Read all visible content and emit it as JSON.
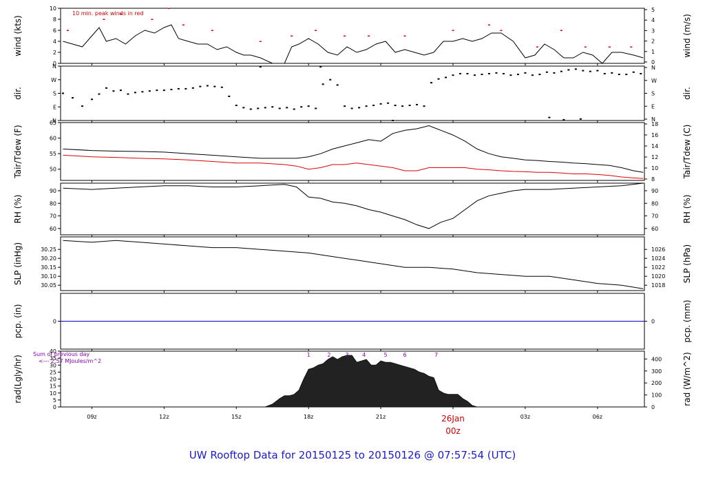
{
  "title": "UW Rooftop Data for 20150125  to  20150126 @ 07:57:54  (UTC)",
  "x_axis": {
    "range_hours": [
      7.7,
      31.95
    ],
    "ticks": [
      {
        "h": 9,
        "label": "09z"
      },
      {
        "h": 12,
        "label": "12z"
      },
      {
        "h": 15,
        "label": "15z"
      },
      {
        "h": 18,
        "label": "18z"
      },
      {
        "h": 21,
        "label": "21z"
      },
      {
        "h": 27,
        "label": "03z"
      },
      {
        "h": 30,
        "label": "06z"
      }
    ],
    "day_label": "26Jan",
    "day_sublabel": "00z",
    "day_hour": 24
  },
  "colors": {
    "axis": "#000000",
    "peak": "#d00000",
    "dew": "#e00000",
    "precip": "#0000cc",
    "purple": "#8800bb",
    "title": "#1a1acc"
  },
  "chart_data": [
    {
      "id": "wind",
      "type": "line",
      "ylabel_left": "wind (kts)",
      "ylabel_right": "wind (m/s)",
      "ylim": [
        0,
        10
      ],
      "left_ticks": [
        "0",
        "2",
        "4",
        "6",
        "8",
        "10"
      ],
      "right_ticks": [
        "0",
        "1",
        "2",
        "3",
        "4",
        "5"
      ],
      "annotation": "10 min. peak winds in red",
      "series": [
        {
          "role": "mean",
          "x": [
            7.8,
            8.2,
            8.6,
            9.0,
            9.3,
            9.6,
            10.0,
            10.4,
            10.8,
            11.2,
            11.6,
            12.0,
            12.3,
            12.6,
            13.0,
            13.4,
            13.8,
            14.2,
            14.6,
            15.0,
            15.3,
            15.6,
            16.0,
            16.5,
            17.0,
            17.3,
            17.6,
            18.0,
            18.4,
            18.8,
            19.2,
            19.6,
            20.0,
            20.4,
            20.8,
            21.2,
            21.6,
            22.0,
            22.4,
            22.8,
            23.2,
            23.6,
            24.0,
            24.4,
            24.8,
            25.2,
            25.6,
            26.0,
            26.5,
            27.0,
            27.4,
            27.8,
            28.2,
            28.6,
            29.0,
            29.4,
            29.8,
            30.2,
            30.6,
            31.0,
            31.5,
            31.9
          ],
          "y": [
            4.0,
            3.5,
            3.0,
            5.0,
            6.5,
            4.0,
            4.5,
            3.5,
            5.0,
            6.0,
            5.5,
            6.5,
            7.0,
            4.5,
            4.0,
            3.5,
            3.5,
            2.5,
            3.0,
            2.0,
            1.5,
            1.5,
            1.0,
            0.0,
            0.0,
            3.0,
            3.5,
            4.5,
            3.5,
            2.0,
            1.5,
            3.0,
            2.0,
            2.5,
            3.5,
            4.0,
            2.0,
            2.5,
            2.0,
            1.5,
            2.0,
            4.0,
            4.0,
            4.5,
            4.0,
            4.5,
            5.5,
            5.5,
            4.0,
            1.0,
            1.5,
            3.5,
            2.5,
            1.0,
            1.0,
            2.0,
            1.5,
            0.0,
            2.0,
            2.0,
            1.5,
            1.0
          ]
        },
        {
          "role": "peak",
          "x": [
            8.0,
            9.5,
            10.2,
            11.5,
            12.2,
            12.8,
            14.0,
            16.0,
            17.3,
            18.3,
            19.5,
            20.5,
            22.0,
            24.0,
            25.5,
            26.0,
            27.5,
            28.5,
            29.5,
            30.5,
            31.4
          ],
          "y": [
            6,
            8,
            9,
            8,
            10,
            7,
            6,
            4,
            5,
            6,
            5,
            5,
            5,
            6,
            7,
            6,
            3,
            6,
            3,
            3,
            3
          ]
        }
      ]
    },
    {
      "id": "dir",
      "type": "scatter",
      "ylabel_left": "dir.",
      "ylabel_right": "dir.",
      "ylim": [
        0,
        360
      ],
      "left_ticks": [
        "N",
        "E",
        "S",
        "W",
        "N"
      ],
      "right_ticks": [
        "N",
        "E",
        "S",
        "W",
        "N"
      ],
      "x": [
        7.8,
        8.2,
        8.6,
        9.0,
        9.3,
        9.6,
        9.9,
        10.2,
        10.5,
        10.8,
        11.1,
        11.4,
        11.7,
        12.0,
        12.3,
        12.6,
        12.9,
        13.2,
        13.5,
        13.8,
        14.1,
        14.4,
        14.7,
        15.0,
        15.3,
        15.6,
        15.9,
        16.2,
        16.5,
        16.8,
        17.1,
        17.4,
        17.7,
        18.0,
        18.3,
        18.6,
        18.9,
        19.2,
        19.5,
        19.8,
        20.1,
        20.4,
        20.7,
        21.0,
        21.3,
        21.6,
        21.9,
        22.2,
        22.5,
        22.8,
        23.1,
        23.4,
        23.7,
        24.0,
        24.3,
        24.6,
        24.9,
        25.2,
        25.5,
        25.8,
        26.1,
        26.4,
        26.7,
        27.0,
        27.3,
        27.6,
        27.9,
        28.2,
        28.5,
        28.8,
        29.1,
        29.4,
        29.7,
        30.0,
        30.3,
        30.6,
        30.9,
        31.2,
        31.5,
        31.8,
        16.0,
        18.5,
        21.5,
        28.0,
        28.6,
        29.3
      ],
      "y": [
        180,
        150,
        95,
        140,
        175,
        215,
        195,
        200,
        175,
        185,
        190,
        195,
        200,
        200,
        205,
        210,
        210,
        215,
        225,
        230,
        225,
        220,
        160,
        100,
        85,
        75,
        80,
        85,
        90,
        80,
        85,
        75,
        90,
        95,
        80,
        240,
        270,
        235,
        95,
        80,
        85,
        95,
        100,
        110,
        115,
        100,
        95,
        100,
        105,
        95,
        250,
        275,
        285,
        300,
        310,
        310,
        300,
        305,
        310,
        315,
        310,
        300,
        305,
        315,
        300,
        305,
        320,
        315,
        325,
        335,
        340,
        330,
        325,
        330,
        310,
        315,
        305,
        305,
        320,
        310,
        355,
        355,
        0,
        20,
        5,
        10
      ]
    },
    {
      "id": "temp",
      "type": "line",
      "ylabel_left": "Tair/Tdew (F)",
      "ylabel_right": "Tair/Tdew (C)",
      "ylim": [
        46.4,
        65
      ],
      "left_ticks": [
        "50",
        "55",
        "60",
        "65"
      ],
      "left_tick_values": [
        50,
        55,
        60,
        65
      ],
      "right_ticks": [
        "8",
        "10",
        "12",
        "14",
        "16",
        "18"
      ],
      "series": [
        {
          "name": "Tair",
          "x": [
            7.8,
            9,
            10,
            11,
            12,
            13,
            14,
            15,
            16,
            17,
            17.5,
            18,
            18.5,
            19,
            19.5,
            20,
            20.5,
            21,
            21.5,
            22,
            22.5,
            23,
            23.5,
            24,
            24.5,
            25,
            25.5,
            26,
            26.5,
            27,
            27.5,
            28,
            28.5,
            29,
            29.5,
            30,
            30.5,
            31,
            31.5,
            31.9
          ],
          "y": [
            56.5,
            56.0,
            55.8,
            55.7,
            55.5,
            55.0,
            54.5,
            54.0,
            53.5,
            53.5,
            53.5,
            54.0,
            55.0,
            56.5,
            57.5,
            58.5,
            59.5,
            59.0,
            61.5,
            62.5,
            63.0,
            64.0,
            62.5,
            61.0,
            59.0,
            56.5,
            55.0,
            54.0,
            53.5,
            53.0,
            52.8,
            52.5,
            52.3,
            52.0,
            51.8,
            51.5,
            51.2,
            50.5,
            49.5,
            49.0
          ]
        },
        {
          "name": "Tdew",
          "x": [
            7.8,
            9,
            10,
            11,
            12,
            13,
            14,
            15,
            16,
            17,
            17.5,
            18,
            18.5,
            19,
            19.5,
            20,
            20.5,
            21,
            21.5,
            22,
            22.5,
            23,
            23.5,
            24,
            24.5,
            25,
            25.5,
            26,
            26.5,
            27,
            27.5,
            28,
            28.5,
            29,
            29.5,
            30,
            30.5,
            31,
            31.5,
            31.9
          ],
          "y": [
            54.5,
            54.0,
            53.8,
            53.5,
            53.3,
            53.0,
            52.5,
            52.0,
            52.0,
            51.5,
            51.0,
            50.0,
            50.5,
            51.5,
            51.5,
            52.0,
            51.5,
            51.0,
            50.5,
            49.5,
            49.5,
            50.5,
            50.5,
            50.5,
            50.5,
            50.0,
            49.8,
            49.5,
            49.3,
            49.2,
            49.0,
            49.0,
            48.8,
            48.5,
            48.5,
            48.3,
            48.0,
            47.5,
            47.2,
            47.0
          ]
        }
      ]
    },
    {
      "id": "rh",
      "type": "line",
      "ylabel_left": "RH (%)",
      "ylabel_right": "RH (%)",
      "ylim": [
        55,
        96
      ],
      "left_ticks": [
        "60",
        "70",
        "80",
        "90"
      ],
      "left_tick_values": [
        60,
        70,
        80,
        90
      ],
      "right_ticks": [
        "60",
        "70",
        "80",
        "90"
      ],
      "series": [
        {
          "x": [
            7.8,
            9,
            10,
            11,
            12,
            13,
            14,
            15,
            16,
            17,
            17.5,
            18,
            18.5,
            19,
            19.5,
            20,
            20.5,
            21,
            21.5,
            22,
            22.5,
            23,
            23.5,
            24,
            24.5,
            25,
            25.5,
            26,
            26.5,
            27,
            28,
            29,
            30,
            31,
            31.9
          ],
          "y": [
            92,
            91,
            92,
            93,
            94,
            94,
            93,
            93,
            94,
            95,
            93,
            85,
            84,
            81,
            80,
            78,
            75,
            73,
            70,
            67,
            63,
            60,
            65,
            68,
            75,
            82,
            86,
            88,
            90,
            91,
            91,
            92,
            93,
            94,
            96
          ]
        }
      ]
    },
    {
      "id": "slp",
      "type": "line",
      "ylabel_left": "SLP (inHg)",
      "ylabel_right": "SLP (hPa)",
      "ylim": [
        30.02,
        30.32
      ],
      "left_ticks": [
        "30.05",
        "30.10",
        "30.15",
        "30.20",
        "30.25"
      ],
      "left_tick_values": [
        30.05,
        30.1,
        30.15,
        30.2,
        30.25
      ],
      "right_ticks": [
        "1018",
        "1020",
        "1022",
        "1024",
        "1026"
      ],
      "series": [
        {
          "x": [
            7.8,
            9,
            10,
            11,
            12,
            13,
            14,
            15,
            16,
            17,
            18,
            19,
            20,
            21,
            22,
            23,
            24,
            25,
            26,
            27,
            28,
            29,
            30,
            31,
            31.9
          ],
          "y": [
            30.3,
            30.29,
            30.3,
            30.29,
            30.28,
            30.27,
            30.26,
            30.26,
            30.25,
            30.24,
            30.23,
            30.21,
            30.19,
            30.17,
            30.15,
            30.15,
            30.14,
            30.12,
            30.11,
            30.1,
            30.1,
            30.08,
            30.06,
            30.05,
            30.03
          ]
        }
      ]
    },
    {
      "id": "precip",
      "type": "line",
      "ylabel_left": "pcp. (in)",
      "ylabel_right": "pcp. (mm)",
      "ylim": [
        -1,
        1
      ],
      "left_ticks": [
        "0"
      ],
      "left_tick_values": [
        0
      ],
      "right_ticks": [
        "0"
      ],
      "series": [
        {
          "x": [
            7.7,
            31.95
          ],
          "y": [
            0,
            0
          ]
        }
      ]
    },
    {
      "id": "rad",
      "type": "area",
      "ylabel_left": "rad(Lgly/hr)",
      "ylabel_right": "rad (W/m^2)",
      "ylim": [
        0,
        40
      ],
      "left_ticks": [
        "0",
        "5",
        "10",
        "15",
        "20",
        "25",
        "30",
        "35",
        "40"
      ],
      "left_tick_values": [
        0,
        5,
        10,
        15,
        20,
        25,
        30,
        35,
        40
      ],
      "right_ticks": [
        "0",
        "100",
        "200",
        "300",
        "400"
      ],
      "right_tick_values_left_units": [
        0,
        8.6,
        17.2,
        25.8,
        34.4
      ],
      "annotation_line1": "Sum of previous day",
      "annotation_line2": "<--- 2.57 MJoules/m^2",
      "hour_markers": [
        {
          "h": 18.0,
          "label": "1"
        },
        {
          "h": 18.85,
          "label": "2"
        },
        {
          "h": 19.6,
          "label": "3"
        },
        {
          "h": 20.3,
          "label": "4"
        },
        {
          "h": 21.2,
          "label": "5"
        },
        {
          "h": 22.0,
          "label": "6"
        },
        {
          "h": 23.3,
          "label": "7"
        }
      ],
      "x": [
        16.2,
        16.5,
        16.8,
        17.0,
        17.2,
        17.4,
        17.6,
        17.8,
        18.0,
        18.2,
        18.4,
        18.6,
        18.8,
        19.0,
        19.2,
        19.4,
        19.6,
        19.8,
        20.0,
        20.2,
        20.4,
        20.6,
        20.8,
        21.0,
        21.2,
        21.4,
        21.6,
        21.8,
        22.0,
        22.2,
        22.4,
        22.6,
        22.8,
        23.0,
        23.2,
        23.4,
        23.6,
        23.8,
        24.0,
        24.2,
        24.4,
        24.6,
        24.8,
        25.0
      ],
      "y": [
        0,
        2,
        6,
        8,
        8,
        9,
        12,
        20,
        27,
        28,
        30,
        31,
        34,
        36,
        34,
        36,
        37,
        37,
        32,
        33,
        34,
        30,
        30,
        33,
        32,
        32,
        31,
        30,
        29,
        28,
        27,
        25,
        24,
        22,
        21,
        12,
        10,
        9,
        9,
        9,
        6,
        4,
        1,
        0
      ]
    }
  ]
}
